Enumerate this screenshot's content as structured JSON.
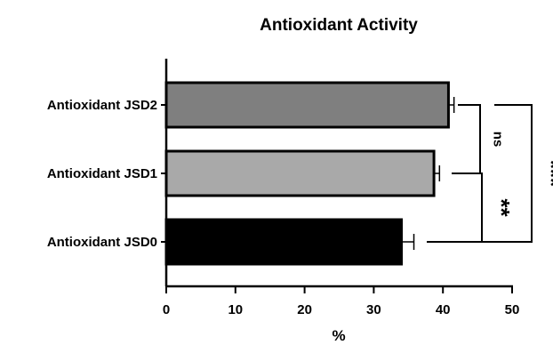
{
  "chart_data": {
    "type": "bar",
    "orientation": "horizontal",
    "title": "Antioxidant Activity",
    "xlabel": "%",
    "ylabel": "",
    "xlim": [
      0,
      50
    ],
    "xticks": [
      0,
      10,
      20,
      30,
      40,
      50
    ],
    "grid": false,
    "legend": "none",
    "bars": [
      {
        "category": "Antioxidant JSD2",
        "value": 40.8,
        "error": 0.8,
        "color": "#7f7f7f"
      },
      {
        "category": "Antioxidant JSD1",
        "value": 38.7,
        "error": 0.8,
        "color": "#a9a9a9"
      },
      {
        "category": "Antioxidant JSD0",
        "value": 34.0,
        "error": 1.8,
        "color": "#000000"
      }
    ],
    "significance": [
      {
        "label": "ns",
        "between": [
          "Antioxidant JSD2",
          "Antioxidant JSD1"
        ]
      },
      {
        "label": "**",
        "between": [
          "Antioxidant JSD1",
          "Antioxidant JSD0"
        ]
      },
      {
        "label": "***",
        "between": [
          "Antioxidant JSD2",
          "Antioxidant JSD0"
        ]
      }
    ]
  }
}
